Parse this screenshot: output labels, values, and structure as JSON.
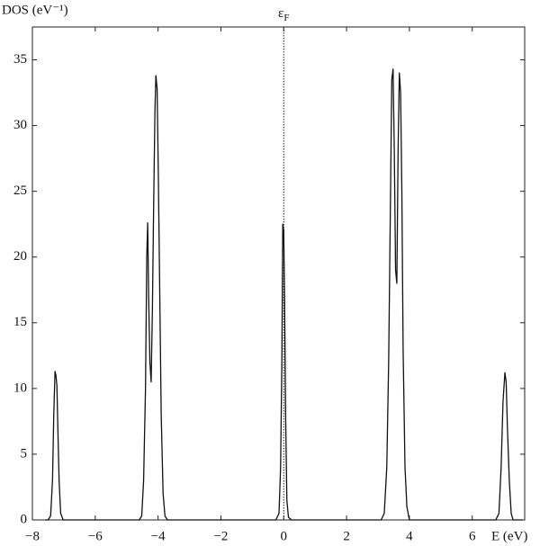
{
  "chart_data": {
    "type": "line",
    "y_label": "DOS (eV⁻¹)",
    "x_label": "E (eV)",
    "fermi_label": {
      "symbol": "ε",
      "subscript": "F"
    },
    "fermi_level": 0,
    "x": [
      -7.6,
      -7.5,
      -7.42,
      -7.36,
      -7.32,
      -7.28,
      -7.25,
      -7.22,
      -7.19,
      -7.15,
      -7.1,
      -7.02,
      -4.6,
      -4.52,
      -4.46,
      -4.4,
      -4.36,
      -4.33,
      -4.3,
      -4.26,
      -4.22,
      -4.18,
      -4.14,
      -4.1,
      -4.07,
      -4.03,
      -3.99,
      -3.95,
      -3.9,
      -3.84,
      -3.78,
      -3.7,
      -0.25,
      -0.15,
      -0.1,
      -0.06,
      -0.03,
      0,
      0.03,
      0.06,
      0.1,
      0.15,
      0.25,
      3.1,
      3.2,
      3.28,
      3.34,
      3.4,
      3.44,
      3.48,
      3.52,
      3.56,
      3.6,
      3.64,
      3.68,
      3.72,
      3.76,
      3.8,
      3.86,
      3.92,
      4.0,
      6.75,
      6.85,
      6.92,
      6.98,
      7.04,
      7.08,
      7.12,
      7.18,
      7.24,
      7.3,
      7.6
    ],
    "series": [
      {
        "color": "#111111",
        "values": [
          0,
          0,
          0.3,
          3,
          8,
          11.3,
          11,
          10.2,
          7,
          3,
          0.5,
          0,
          0,
          0.3,
          3,
          10,
          20,
          22.6,
          17,
          12,
          10.5,
          16,
          24,
          31,
          33.8,
          32.8,
          26,
          18,
          8,
          2,
          0.3,
          0,
          0,
          0.5,
          4,
          12,
          22.5,
          22,
          16,
          8,
          1.5,
          0.2,
          0,
          0,
          0.5,
          4,
          12,
          25,
          33.5,
          34.3,
          28,
          19,
          18,
          28,
          34,
          32.5,
          25,
          13,
          4,
          1,
          0,
          0,
          0.5,
          4,
          9,
          11.2,
          10.5,
          7,
          3,
          0.5,
          0,
          0
        ]
      }
    ],
    "xlim": [
      -8,
      7.67
    ],
    "ylim": [
      0,
      37.5
    ],
    "xticks": [
      {
        "value": -8,
        "label": "−8"
      },
      {
        "value": -6,
        "label": "−6"
      },
      {
        "value": -4,
        "label": "−4"
      },
      {
        "value": -2,
        "label": "−2"
      },
      0,
      2,
      4,
      6
    ],
    "yticks": [
      0,
      5,
      10,
      15,
      20,
      25,
      30,
      35
    ]
  }
}
